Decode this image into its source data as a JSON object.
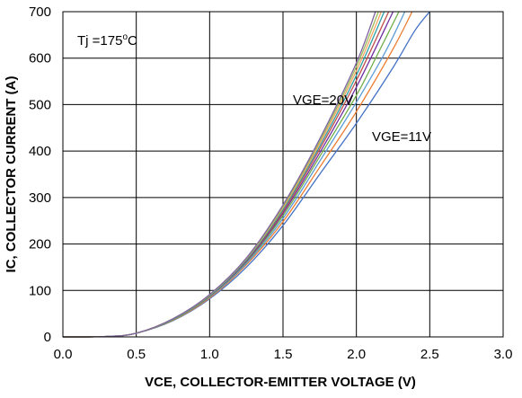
{
  "chart_data": {
    "type": "line",
    "title": "",
    "xlabel": "VCE, COLLECTOR-EMITTER VOLTAGE (V)",
    "ylabel": "IC, COLLECTOR CURRENT (A)",
    "xlim": [
      0,
      3
    ],
    "ylim": [
      0,
      700
    ],
    "xticks": [
      "0.0",
      "0.5",
      "1.0",
      "1.5",
      "2.0",
      "2.5",
      "3.0"
    ],
    "yticks": [
      "0",
      "100",
      "200",
      "300",
      "400",
      "500",
      "600",
      "700"
    ],
    "grid": true,
    "annotations": {
      "temperature": "Tj =175",
      "temperature_degree": "o",
      "temperature_unit": "C",
      "label_top": "VGE=20V",
      "label_bottom": "VGE=11V"
    },
    "series": [
      {
        "color": "#4472c4",
        "x": [
          0,
          0.3,
          0.5,
          0.75,
          1.0,
          1.25,
          1.5,
          1.75,
          2.0,
          2.25,
          2.4,
          2.5
        ],
        "y": [
          0,
          1,
          8,
          35,
          82,
          150,
          240,
          350,
          460,
          580,
          660,
          700
        ]
      },
      {
        "color": "#ed7d31",
        "x": [
          0,
          0.3,
          0.5,
          0.75,
          1.0,
          1.25,
          1.5,
          1.75,
          2.0,
          2.25,
          2.38
        ],
        "y": [
          0,
          1,
          8,
          36,
          84,
          155,
          248,
          365,
          485,
          620,
          700
        ]
      },
      {
        "color": "#5b9bd5",
        "x": [
          0,
          0.3,
          0.5,
          0.75,
          1.0,
          1.25,
          1.5,
          1.75,
          2.0,
          2.2,
          2.33
        ],
        "y": [
          0,
          1,
          8,
          37,
          86,
          158,
          255,
          378,
          505,
          615,
          700
        ]
      },
      {
        "color": "#70ad47",
        "x": [
          0,
          0.3,
          0.5,
          0.75,
          1.0,
          1.25,
          1.5,
          1.75,
          2.0,
          2.15,
          2.29
        ],
        "y": [
          0,
          1,
          8,
          37,
          87,
          161,
          261,
          388,
          520,
          612,
          700
        ]
      },
      {
        "color": "#7030a0",
        "x": [
          0,
          0.3,
          0.5,
          0.75,
          1.0,
          1.25,
          1.5,
          1.75,
          2.0,
          2.25
        ],
        "y": [
          0,
          1,
          8,
          38,
          88,
          163,
          266,
          396,
          538,
          700
        ]
      },
      {
        "color": "#c0504d",
        "x": [
          0,
          0.3,
          0.5,
          0.75,
          1.0,
          1.25,
          1.5,
          1.75,
          2.0,
          2.22
        ],
        "y": [
          0,
          1,
          8,
          38,
          89,
          165,
          270,
          404,
          552,
          700
        ]
      },
      {
        "color": "#2e9fa5",
        "x": [
          0,
          0.3,
          0.5,
          0.75,
          1.0,
          1.25,
          1.5,
          1.75,
          2.0,
          2.19
        ],
        "y": [
          0,
          1,
          8,
          38,
          89,
          166,
          274,
          410,
          563,
          700
        ]
      },
      {
        "color": "#f4a460",
        "x": [
          0,
          0.3,
          0.5,
          0.75,
          1.0,
          1.25,
          1.5,
          1.75,
          2.0,
          2.17
        ],
        "y": [
          0,
          1,
          8,
          39,
          90,
          168,
          278,
          416,
          573,
          700
        ]
      },
      {
        "color": "#9bbb59",
        "x": [
          0,
          0.3,
          0.5,
          0.75,
          1.0,
          1.25,
          1.5,
          1.75,
          2.0,
          2.15
        ],
        "y": [
          0,
          1,
          8,
          39,
          90,
          169,
          281,
          421,
          582,
          700
        ]
      },
      {
        "color": "#8064a2",
        "x": [
          0,
          0.3,
          0.5,
          0.75,
          1.0,
          1.25,
          1.5,
          1.75,
          2.0,
          2.13
        ],
        "y": [
          0,
          1,
          8,
          39,
          91,
          170,
          284,
          426,
          590,
          700
        ]
      }
    ]
  }
}
